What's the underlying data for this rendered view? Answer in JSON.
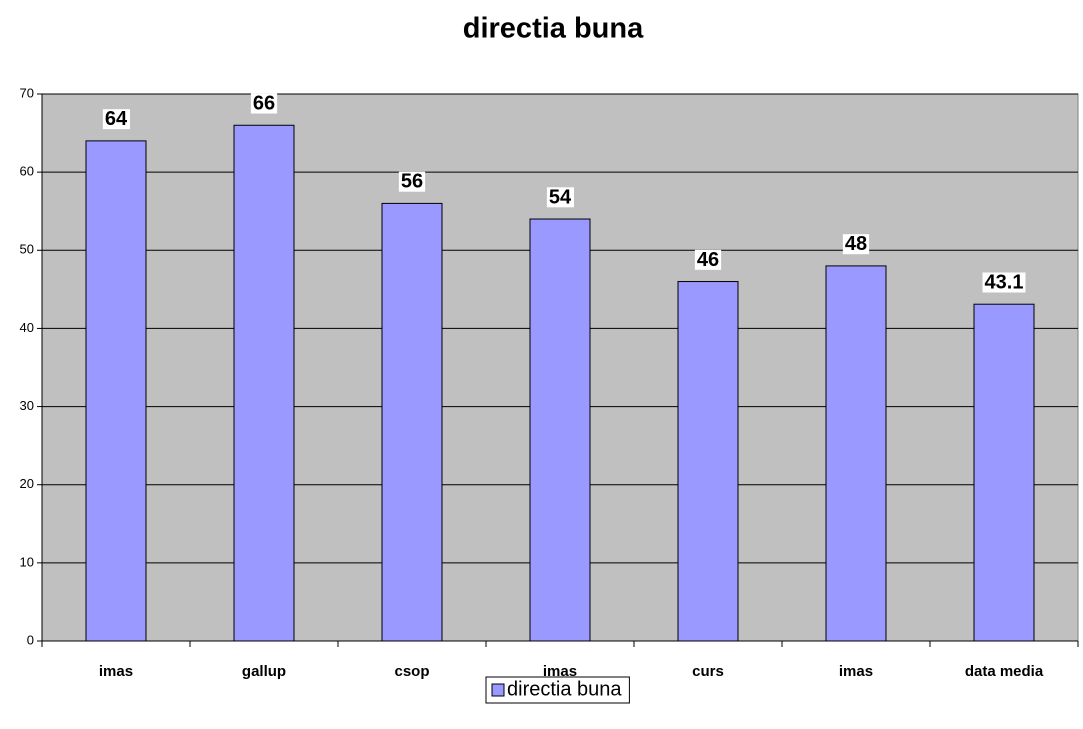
{
  "chart_data": {
    "type": "bar",
    "title": "directia buna",
    "categories": [
      "imas",
      "gallup",
      "csop",
      "imas",
      "curs",
      "imas",
      "data media"
    ],
    "series": [
      {
        "name": "directia buna",
        "color": "#9999ff",
        "values": [
          64,
          66,
          56,
          54,
          46,
          48,
          43.1
        ]
      }
    ],
    "ylim": [
      0,
      70
    ],
    "yticks": [
      0,
      10,
      20,
      30,
      40,
      50,
      60,
      70
    ],
    "grid": true,
    "legend": "bottom"
  }
}
